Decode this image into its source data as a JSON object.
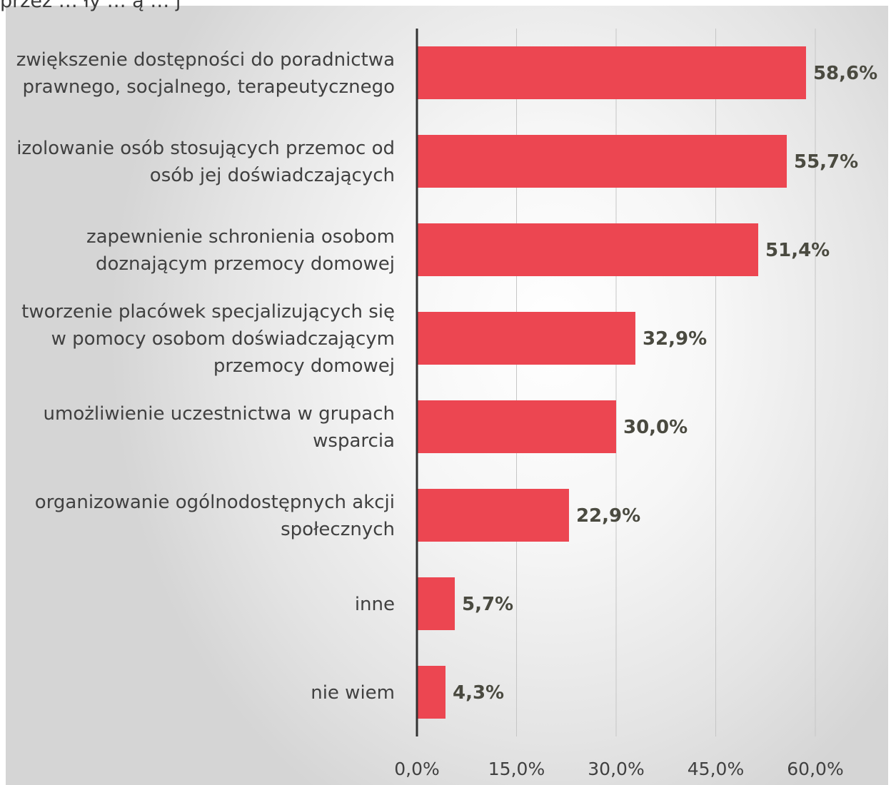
{
  "top_fragment": "przez … ły … ą … j",
  "chart_data": {
    "type": "bar",
    "orientation": "horizontal",
    "title": "",
    "xlabel": "",
    "ylabel": "",
    "xlim": [
      0,
      60
    ],
    "grid": true,
    "legend": "none",
    "bar_color": "#ec4651",
    "value_label_color": "#4a4a40",
    "categories": [
      [
        "zwiększenie dostępności do poradnictwa",
        "prawnego, socjalnego, terapeutycznego"
      ],
      [
        "izolowanie osób stosujących przemoc od",
        "osób jej doświadczających"
      ],
      [
        "zapewnienie schronienia osobom",
        "doznającym przemocy domowej"
      ],
      [
        "tworzenie placówek specjalizujących się",
        "w pomocy osobom doświadczającym",
        "przemocy domowej"
      ],
      [
        "umożliwienie uczestnictwa w grupach",
        "wsparcia"
      ],
      [
        "organizowanie ogólnodostępnych akcji",
        "społecznych"
      ],
      [
        "inne"
      ],
      [
        "nie wiem"
      ]
    ],
    "values": [
      58.6,
      55.7,
      51.4,
      32.9,
      30.0,
      22.9,
      5.7,
      4.3
    ],
    "value_labels": [
      "58,6%",
      "55,7%",
      "51,4%",
      "32,9%",
      "30,0%",
      "22,9%",
      "5,7%",
      "4,3%"
    ],
    "x_ticks": [
      0,
      15,
      30,
      45,
      60
    ],
    "x_tick_labels": [
      "0,0%",
      "15,0%",
      "30,0%",
      "45,0%",
      "60,0%"
    ]
  }
}
